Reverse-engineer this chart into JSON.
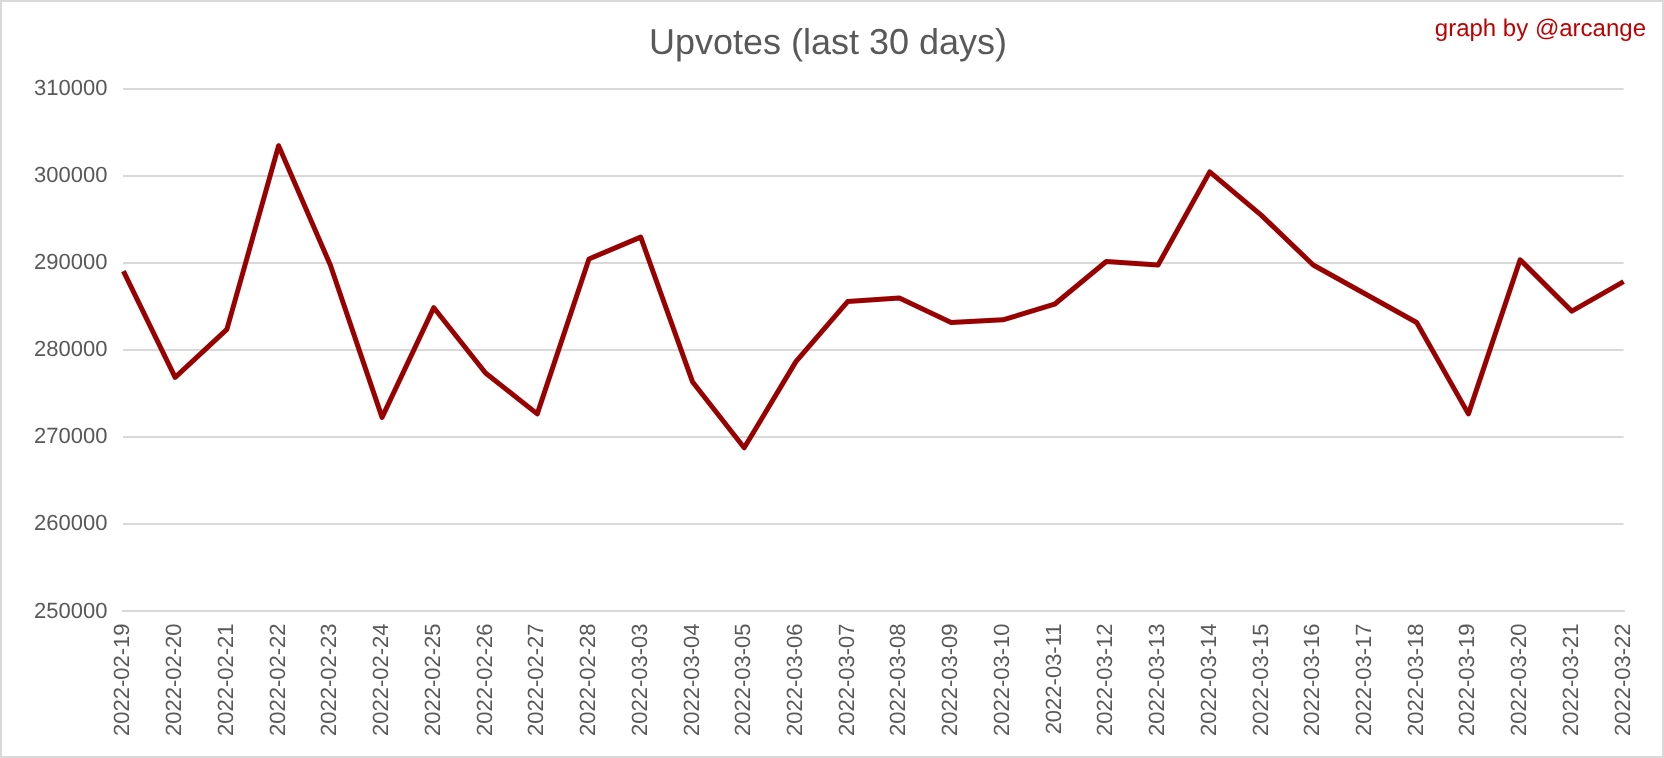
{
  "chart_data": {
    "type": "line",
    "title": "Upvotes (last 30 days)",
    "annotations": [
      "graph by @arcange"
    ],
    "categories": [
      "2022-02-19",
      "2022-02-20",
      "2022-02-21",
      "2022-02-22",
      "2022-02-23",
      "2022-02-24",
      "2022-02-25",
      "2022-02-26",
      "2022-02-27",
      "2022-02-28",
      "2022-03-03",
      "2022-03-04",
      "2022-03-05",
      "2022-03-06",
      "2022-03-07",
      "2022-03-08",
      "2022-03-09",
      "2022-03-10",
      "2022-03-11",
      "2022-03-12",
      "2022-03-13",
      "2022-03-14",
      "2022-03-15",
      "2022-03-16",
      "2022-03-17",
      "2022-03-18",
      "2022-03-19",
      "2022-03-20",
      "2022-03-21",
      "2022-03-22"
    ],
    "series": [
      {
        "color": "#990000",
        "values": [
          289100,
          276900,
          282400,
          303500,
          289800,
          272300,
          284900,
          277400,
          272700,
          290500,
          293000,
          276400,
          268800,
          278700,
          285600,
          286000,
          283200,
          283500,
          285300,
          290200,
          289800,
          300500,
          295500,
          289800,
          286500,
          283200,
          272700,
          290400,
          284500,
          287900
        ]
      }
    ],
    "ylim": [
      250000,
      310000
    ],
    "yticks": [
      250000,
      260000,
      270000,
      280000,
      290000,
      300000,
      310000
    ],
    "grid": "y",
    "legend": false,
    "marker": "none",
    "line_style": "solid"
  }
}
